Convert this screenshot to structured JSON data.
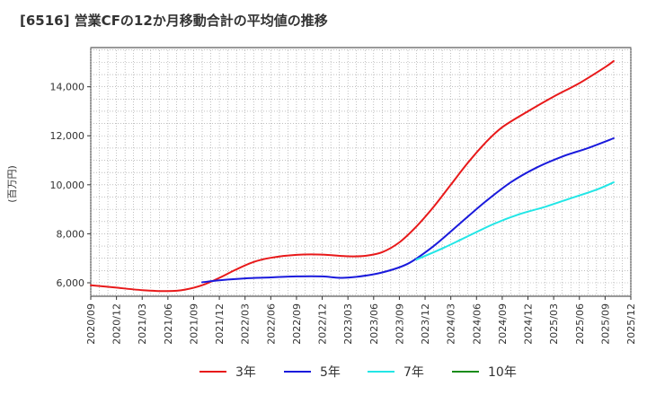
{
  "chart_data": {
    "type": "line",
    "title": "[6516]  営業CFの12か月移動合計の平均値の推移",
    "ylabel": "(百万円)",
    "xlabel": "",
    "ylim": [
      5450,
      15600
    ],
    "yticks": [
      6000,
      8000,
      10000,
      12000,
      14000
    ],
    "ytick_labels": [
      "6,000",
      "8,000",
      "10,000",
      "12,000",
      "14,000"
    ],
    "x_start": "2020-09",
    "x_end": "2025-12",
    "xtick_labels": [
      "2020/09",
      "2020/12",
      "2021/03",
      "2021/06",
      "2021/09",
      "2021/12",
      "2022/03",
      "2022/06",
      "2022/09",
      "2022/12",
      "2023/03",
      "2023/06",
      "2023/09",
      "2023/12",
      "2024/03",
      "2024/06",
      "2024/09",
      "2024/12",
      "2025/03",
      "2025/06",
      "2025/09",
      "2025/12"
    ],
    "series": [
      {
        "name": "3年",
        "color": "#e8191a",
        "points": [
          [
            "2020-09",
            5900
          ],
          [
            "2020-12",
            5800
          ],
          [
            "2021-03",
            5700
          ],
          [
            "2021-06",
            5660
          ],
          [
            "2021-08",
            5720
          ],
          [
            "2021-10",
            5900
          ],
          [
            "2021-12",
            6200
          ],
          [
            "2022-02",
            6550
          ],
          [
            "2022-04",
            6850
          ],
          [
            "2022-06",
            7020
          ],
          [
            "2022-09",
            7140
          ],
          [
            "2022-12",
            7150
          ],
          [
            "2023-03",
            7080
          ],
          [
            "2023-05",
            7100
          ],
          [
            "2023-07",
            7250
          ],
          [
            "2023-09",
            7650
          ],
          [
            "2023-11",
            8300
          ],
          [
            "2024-01",
            9100
          ],
          [
            "2024-03",
            10000
          ],
          [
            "2024-05",
            10900
          ],
          [
            "2024-07",
            11700
          ],
          [
            "2024-09",
            12350
          ],
          [
            "2024-12",
            13000
          ],
          [
            "2025-03",
            13600
          ],
          [
            "2025-06",
            14150
          ],
          [
            "2025-09",
            14800
          ],
          [
            "2025-10",
            15050
          ]
        ]
      },
      {
        "name": "5年",
        "color": "#1a1adc",
        "points": [
          [
            "2021-10",
            6020
          ],
          [
            "2021-12",
            6100
          ],
          [
            "2022-03",
            6180
          ],
          [
            "2022-06",
            6220
          ],
          [
            "2022-09",
            6260
          ],
          [
            "2022-12",
            6260
          ],
          [
            "2023-02",
            6200
          ],
          [
            "2023-04",
            6240
          ],
          [
            "2023-07",
            6420
          ],
          [
            "2023-10",
            6780
          ],
          [
            "2024-01",
            7500
          ],
          [
            "2024-04",
            8400
          ],
          [
            "2024-07",
            9300
          ],
          [
            "2024-10",
            10100
          ],
          [
            "2025-01",
            10700
          ],
          [
            "2025-04",
            11150
          ],
          [
            "2025-07",
            11500
          ],
          [
            "2025-10",
            11900
          ]
        ]
      },
      {
        "name": "7年",
        "color": "#22e6e6",
        "points": [
          [
            "2023-11",
            6950
          ],
          [
            "2024-02",
            7400
          ],
          [
            "2024-05",
            7900
          ],
          [
            "2024-08",
            8400
          ],
          [
            "2024-11",
            8800
          ],
          [
            "2025-02",
            9100
          ],
          [
            "2025-05",
            9450
          ],
          [
            "2025-08",
            9800
          ],
          [
            "2025-10",
            10100
          ]
        ]
      },
      {
        "name": "10年",
        "color": "#1a8c1a",
        "points": []
      }
    ]
  }
}
